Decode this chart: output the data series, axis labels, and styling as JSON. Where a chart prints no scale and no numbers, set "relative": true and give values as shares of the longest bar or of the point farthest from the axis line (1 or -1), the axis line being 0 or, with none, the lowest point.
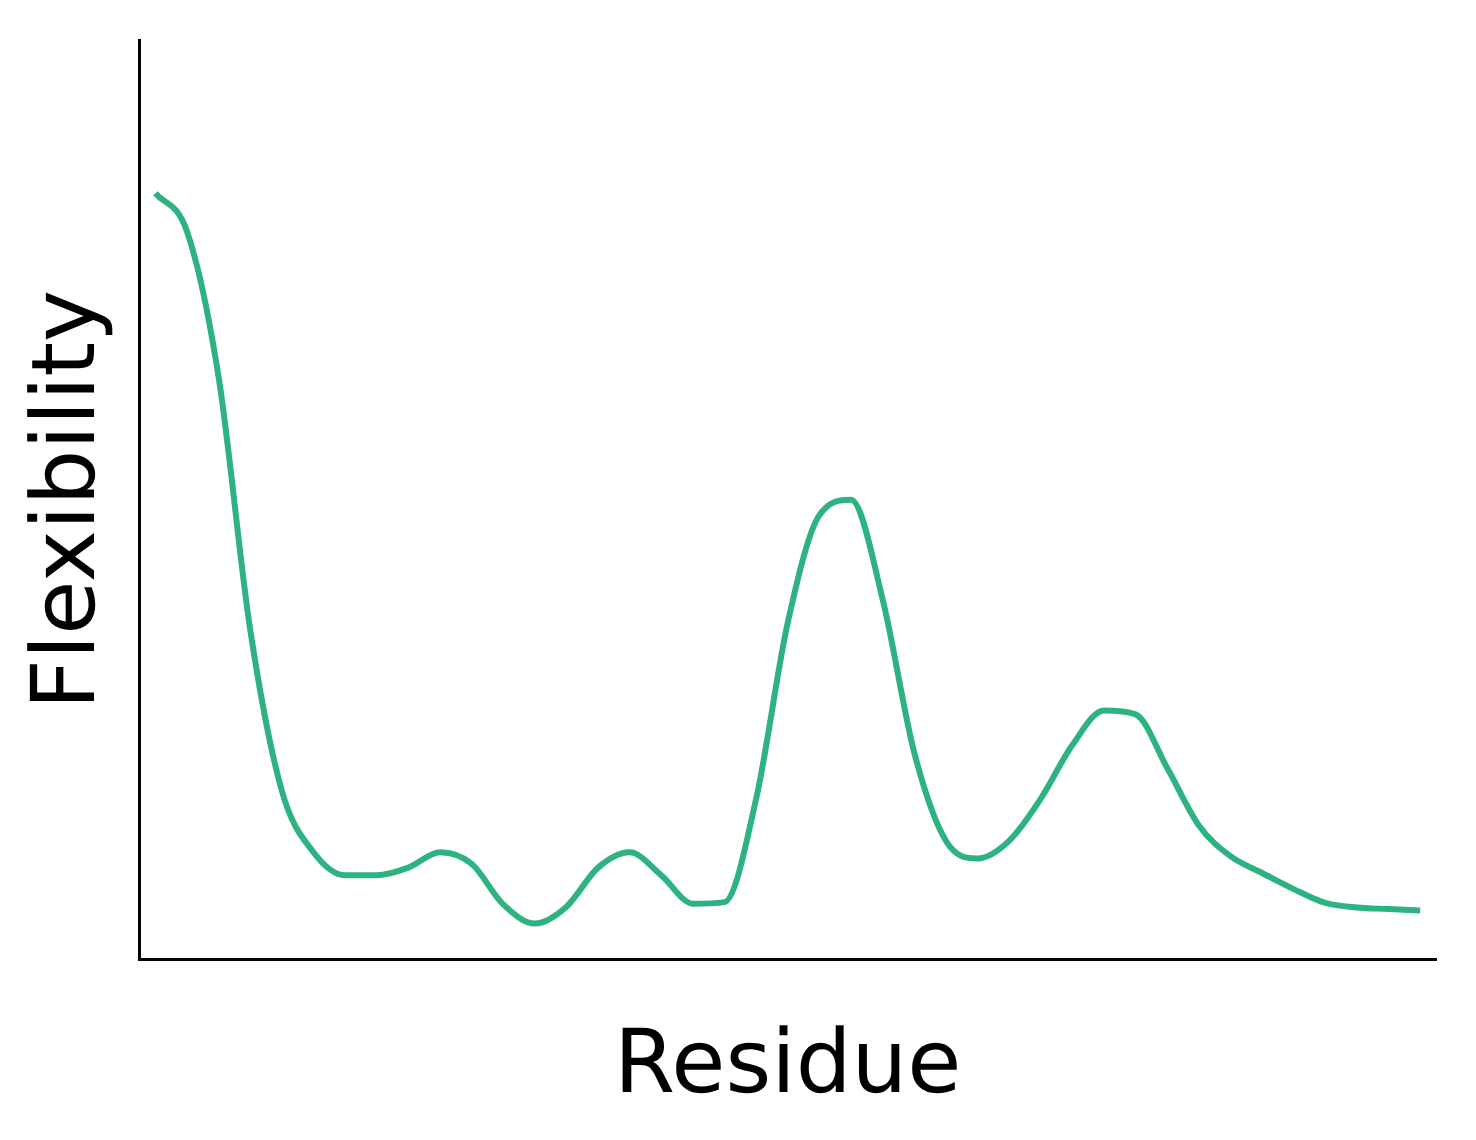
{
  "chart_data": {
    "type": "line",
    "xlabel": "Residue",
    "ylabel": "Flexibility",
    "relative": true,
    "grid": false,
    "legend": false,
    "marker": "none",
    "line_style": "solid",
    "categories": [
      null,
      null,
      null,
      null,
      null,
      null,
      null,
      null,
      null,
      null,
      null,
      null,
      null,
      null,
      null,
      null,
      null,
      null,
      null,
      null,
      null,
      null,
      null,
      null,
      null,
      null,
      null,
      null,
      null,
      null,
      null,
      null,
      null,
      null,
      null,
      null,
      null,
      null,
      null,
      null,
      null
    ],
    "series": [
      {
        "color": "#2db37f",
        "values": [
          1.0,
          0.95,
          0.76,
          0.43,
          0.22,
          0.14,
          0.11,
          0.11,
          0.12,
          0.14,
          0.125,
          0.072,
          0.047,
          0.069,
          0.12,
          0.14,
          0.11,
          0.073,
          0.075,
          0.21,
          0.44,
          0.58,
          0.6,
          0.47,
          0.27,
          0.155,
          0.132,
          0.155,
          0.21,
          0.28,
          0.325,
          0.32,
          0.25,
          0.175,
          0.135,
          0.113,
          0.092,
          0.074,
          0.068,
          0.066,
          0.064
        ]
      }
    ]
  }
}
